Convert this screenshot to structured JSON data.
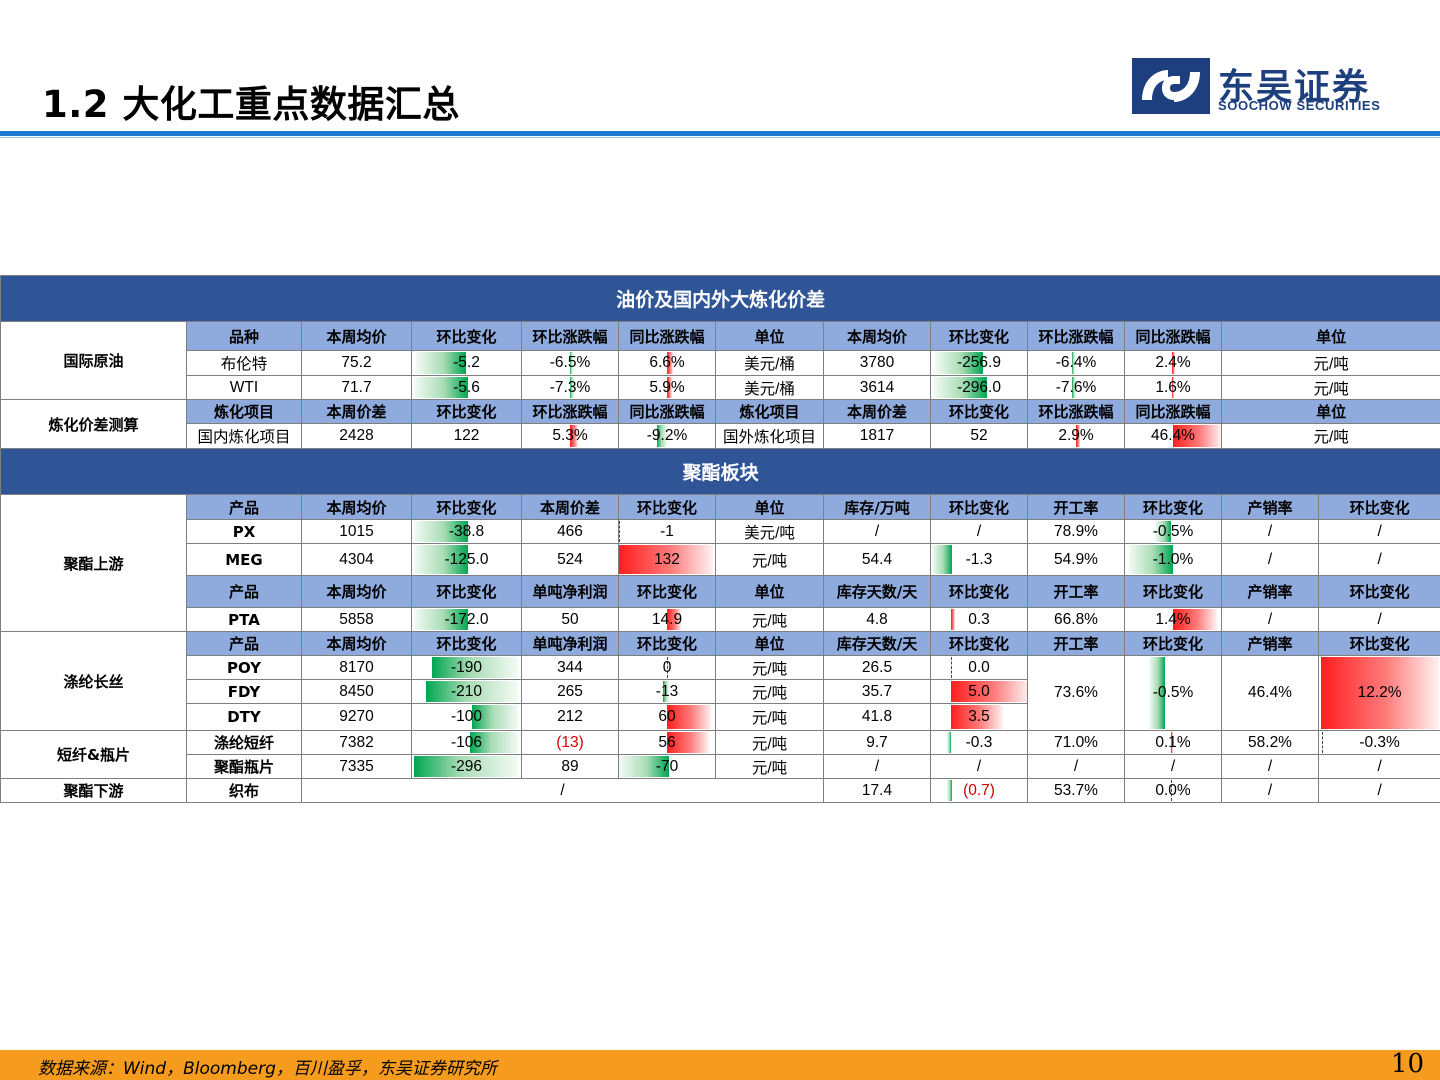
{
  "header": {
    "title": "1.2 大化工重点数据汇总",
    "logo_cn": "东吴证券",
    "logo_en": "SOOCHOW SECURITIES"
  },
  "oil": {
    "banner": "油价及国内外大炼化价差",
    "section_crude": "国际原油",
    "crude_headers": [
      "品种",
      "本周均价",
      "环比变化",
      "环比涨跌幅",
      "同比涨跌幅",
      "单位",
      "本周均价",
      "环比变化",
      "环比涨跌幅",
      "同比涨跌幅",
      "单位"
    ],
    "rows": [
      {
        "name": "布伦特",
        "price": "75.2",
        "chg": "-5.2",
        "chg_pct": "-6.5%",
        "yoy": "6.6%",
        "unit": "美元/桶",
        "price2": "3780",
        "chg2": "-256.9",
        "chg_pct2": "-6.4%",
        "yoy2": "2.4%",
        "unit2": "元/吨"
      },
      {
        "name": "WTI",
        "price": "71.7",
        "chg": "-5.6",
        "chg_pct": "-7.3%",
        "yoy": "5.9%",
        "unit": "美元/桶",
        "price2": "3614",
        "chg2": "-296.0",
        "chg_pct2": "-7.6%",
        "yoy2": "1.6%",
        "unit2": "元/吨"
      }
    ],
    "section_spread": "炼化价差测算",
    "spread_headers": [
      "炼化项目",
      "本周价差",
      "环比变化",
      "环比涨跌幅",
      "同比涨跌幅",
      "炼化项目",
      "本周价差",
      "环比变化",
      "环比涨跌幅",
      "同比涨跌幅",
      "单位"
    ],
    "spread": {
      "name": "国内炼化项目",
      "val": "2428",
      "chg": "122",
      "chg_pct": "5.3%",
      "yoy": "-9.2%",
      "name2": "国外炼化项目",
      "val2": "1817",
      "chg2": "52",
      "chg_pct2": "2.9%",
      "yoy2": "46.4%",
      "unit": "元/吨"
    }
  },
  "polyester": {
    "banner": "聚酯板块",
    "section_upstream": "聚酯上游",
    "up_headers": [
      "产品",
      "本周均价",
      "环比变化",
      "本周价差",
      "环比变化",
      "单位",
      "库存/万吨",
      "环比变化",
      "开工率",
      "环比变化",
      "产销率",
      "环比变化"
    ],
    "px": {
      "name": "PX",
      "price": "1015",
      "chg": "-38.8",
      "spread": "466",
      "spread_chg": "-1",
      "unit": "美元/吨",
      "inv": "/",
      "inv_chg": "/",
      "rate": "78.9%",
      "rate_chg": "-0.5%",
      "sales": "/",
      "sales_chg": "/"
    },
    "meg": {
      "name": "MEG",
      "price": "4304",
      "chg": "-125.0",
      "spread": "524",
      "spread_chg": "132",
      "unit": "元/吨",
      "inv": "54.4",
      "inv_chg": "-1.3",
      "rate": "54.9%",
      "rate_chg": "-1.0%",
      "sales": "/",
      "sales_chg": "/"
    },
    "pta_headers": [
      "产品",
      "本周均价",
      "环比变化",
      "单吨净利润",
      "环比变化",
      "单位",
      "库存天数/天",
      "环比变化",
      "开工率",
      "环比变化",
      "产销率",
      "环比变化"
    ],
    "pta": {
      "name": "PTA",
      "price": "5858",
      "chg": "-172.0",
      "profit": "50",
      "profit_chg": "14.9",
      "unit": "元/吨",
      "days": "4.8",
      "days_chg": "0.3",
      "rate": "66.8%",
      "rate_chg": "1.4%",
      "sales": "/",
      "sales_chg": "/"
    },
    "section_filament": "涤纶长丝",
    "fil_headers": [
      "产品",
      "本周均价",
      "环比变化",
      "单吨净利润",
      "环比变化",
      "单位",
      "库存天数/天",
      "环比变化",
      "开工率",
      "环比变化",
      "产销率",
      "环比变化"
    ],
    "filament": [
      {
        "name": "POY",
        "price": "8170",
        "chg": "-190",
        "profit": "344",
        "profit_chg": "0",
        "unit": "元/吨",
        "days": "26.5",
        "days_chg": "0.0"
      },
      {
        "name": "FDY",
        "price": "8450",
        "chg": "-210",
        "profit": "265",
        "profit_chg": "-13",
        "unit": "元/吨",
        "days": "35.7",
        "days_chg": "5.0"
      },
      {
        "name": "DTY",
        "price": "9270",
        "chg": "-100",
        "profit": "212",
        "profit_chg": "60",
        "unit": "元/吨",
        "days": "41.8",
        "days_chg": "3.5"
      }
    ],
    "fil_shared": {
      "rate": "73.6%",
      "rate_chg": "-0.5%",
      "sales": "46.4%",
      "sales_chg": "12.2%"
    },
    "section_staple": "短纤&瓶片",
    "staple": {
      "name": "涤纶短纤",
      "price": "7382",
      "chg": "-106",
      "profit": "(13)",
      "profit_chg": "56",
      "unit": "元/吨",
      "days": "9.7",
      "days_chg": "-0.3",
      "rate": "71.0%",
      "rate_chg": "0.1%",
      "sales": "58.2%",
      "sales_chg": "-0.3%"
    },
    "bottle": {
      "name": "聚酯瓶片",
      "price": "7335",
      "chg": "-296",
      "profit": "89",
      "profit_chg": "-70",
      "unit": "元/吨",
      "days": "/",
      "days_chg": "/",
      "rate": "/",
      "rate_chg": "/",
      "sales": "/",
      "sales_chg": "/"
    },
    "section_downstream": "聚酯下游",
    "fabric": {
      "name": "织布",
      "merged": "/",
      "days": "17.4",
      "days_chg": "(0.7)",
      "rate": "53.7%",
      "rate_chg": "0.0%",
      "sales": "/",
      "sales_chg": "/"
    }
  },
  "footer": {
    "source": "数据来源：Wind，Bloomberg，百川盈孚，东吴证券研究所",
    "page": "10"
  },
  "colors": {
    "banner": "#2f5597",
    "header_row": "#8faadc",
    "title_rule": "#1e7ad0",
    "footer_bar": "#f59b1e",
    "negative_bar": "#00a651",
    "positive_bar": "#ff1e1e",
    "logo": "#1e3f7e"
  }
}
